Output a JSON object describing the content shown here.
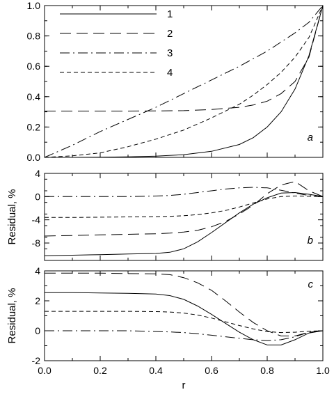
{
  "chart_data": {
    "type": "line",
    "x_axis": {
      "label": "r",
      "range": [
        0.0,
        1.0
      ],
      "ticks": [
        0.0,
        0.2,
        0.4,
        0.6,
        0.8,
        1.0
      ],
      "tick_labels": [
        "0.0",
        "0.2",
        "0.4",
        "0.6",
        "0.8",
        "1.0"
      ]
    },
    "legend": {
      "placement": "top-left",
      "entries": [
        {
          "label": "1",
          "dash": "solid"
        },
        {
          "label": "2",
          "dash": "long-dash"
        },
        {
          "label": "3",
          "dash": "dash-dot"
        },
        {
          "label": "4",
          "dash": "short-dash"
        }
      ]
    },
    "panels": [
      {
        "panel_label": "a",
        "ylabel": "",
        "ylim": [
          0.0,
          1.0
        ],
        "yticks": [
          0.0,
          0.2,
          0.4,
          0.6,
          0.8,
          1.0
        ],
        "ytick_labels": [
          "0.0",
          "0.2",
          "0.4",
          "0.6",
          "0.8",
          "1.0"
        ],
        "x": [
          0.0,
          0.1,
          0.2,
          0.3,
          0.4,
          0.5,
          0.6,
          0.7,
          0.75,
          0.8,
          0.85,
          0.9,
          0.95,
          1.0
        ],
        "series": [
          {
            "label": "1",
            "values": [
              0.0,
              0.0,
              0.001,
              0.003,
              0.008,
              0.018,
              0.04,
              0.085,
              0.13,
              0.2,
              0.3,
              0.45,
              0.67,
              1.0
            ]
          },
          {
            "label": "2",
            "values": [
              0.305,
              0.305,
              0.305,
              0.305,
              0.306,
              0.308,
              0.315,
              0.33,
              0.345,
              0.37,
              0.42,
              0.5,
              0.66,
              1.0
            ]
          },
          {
            "label": "3",
            "values": [
              0.0,
              0.08,
              0.17,
              0.25,
              0.33,
              0.42,
              0.51,
              0.6,
              0.65,
              0.7,
              0.76,
              0.82,
              0.89,
              1.0
            ]
          },
          {
            "label": "4",
            "values": [
              0.0,
              0.01,
              0.03,
              0.07,
              0.12,
              0.18,
              0.26,
              0.35,
              0.41,
              0.48,
              0.56,
              0.66,
              0.79,
              1.0
            ]
          }
        ]
      },
      {
        "panel_label": "b",
        "ylabel": "Residual, %",
        "ylim": [
          -11,
          4
        ],
        "yticks": [
          4,
          0,
          -4,
          -8
        ],
        "ytick_labels": [
          "4",
          "0",
          "-4",
          "-8"
        ],
        "x": [
          0.0,
          0.1,
          0.2,
          0.3,
          0.4,
          0.45,
          0.5,
          0.55,
          0.6,
          0.65,
          0.7,
          0.75,
          0.8,
          0.85,
          0.9,
          0.95,
          1.0
        ],
        "series": [
          {
            "label": "1",
            "values": [
              -10.2,
              -10.1,
              -10.0,
              -9.9,
              -9.8,
              -9.6,
              -9.0,
              -7.8,
              -6.2,
              -4.5,
              -2.8,
              -1.3,
              -0.2,
              0.6,
              0.7,
              0.4,
              0.0
            ]
          },
          {
            "label": "2",
            "values": [
              -6.8,
              -6.7,
              -6.6,
              -6.5,
              -6.4,
              -6.3,
              -6.1,
              -5.8,
              -5.2,
              -4.3,
              -3.0,
              -1.5,
              0.5,
              2.0,
              2.6,
              1.0,
              0.0
            ]
          },
          {
            "label": "3",
            "values": [
              0.0,
              0.0,
              0.0,
              0.0,
              0.1,
              0.2,
              0.4,
              0.7,
              1.0,
              1.3,
              1.5,
              1.6,
              1.5,
              1.1,
              0.6,
              0.2,
              0.0
            ]
          },
          {
            "label": "4",
            "values": [
              -3.6,
              -3.6,
              -3.55,
              -3.5,
              -3.45,
              -3.4,
              -3.3,
              -3.1,
              -2.8,
              -2.4,
              -1.8,
              -1.1,
              -0.4,
              0.0,
              0.1,
              0.05,
              0.0
            ]
          }
        ]
      },
      {
        "panel_label": "c",
        "ylabel": "Residual, %",
        "ylim": [
          -2,
          4
        ],
        "yticks": [
          4,
          2,
          0,
          -2
        ],
        "ytick_labels": [
          "4",
          "2",
          "0",
          "-2"
        ],
        "x": [
          0.0,
          0.1,
          0.2,
          0.3,
          0.4,
          0.45,
          0.5,
          0.55,
          0.6,
          0.65,
          0.7,
          0.75,
          0.8,
          0.85,
          0.9,
          0.95,
          1.0
        ],
        "series": [
          {
            "label": "1",
            "values": [
              2.55,
              2.55,
              2.52,
              2.5,
              2.45,
              2.35,
              2.1,
              1.65,
              1.1,
              0.5,
              -0.1,
              -0.6,
              -0.95,
              -0.95,
              -0.6,
              -0.15,
              0.0
            ]
          },
          {
            "label": "2",
            "values": [
              3.85,
              3.85,
              3.85,
              3.82,
              3.8,
              3.75,
              3.55,
              3.2,
              2.7,
              2.0,
              1.25,
              0.55,
              0.0,
              -0.35,
              -0.35,
              -0.1,
              0.0
            ]
          },
          {
            "label": "3",
            "values": [
              0.0,
              0.0,
              0.0,
              0.0,
              -0.05,
              -0.08,
              -0.12,
              -0.2,
              -0.3,
              -0.4,
              -0.5,
              -0.6,
              -0.65,
              -0.6,
              -0.4,
              -0.1,
              0.0
            ]
          },
          {
            "label": "4",
            "values": [
              1.3,
              1.3,
              1.3,
              1.3,
              1.28,
              1.25,
              1.18,
              1.05,
              0.85,
              0.6,
              0.35,
              0.12,
              -0.05,
              -0.12,
              -0.1,
              -0.03,
              0.0
            ]
          }
        ]
      }
    ]
  }
}
